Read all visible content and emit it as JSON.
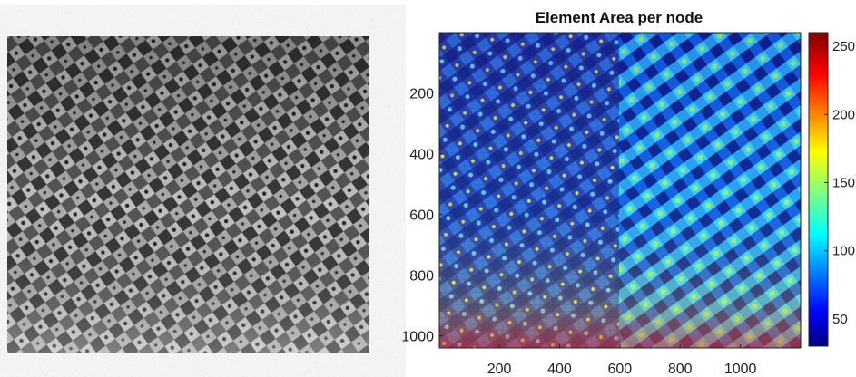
{
  "chart_data": [
    {
      "type": "image",
      "title": "",
      "description_kind": "grayscale photograph of a woven fabric surface"
    },
    {
      "type": "heatmap",
      "title": "Element Area per node",
      "xlabel": "",
      "ylabel": "",
      "x_ticks": [
        200,
        400,
        600,
        800,
        1000
      ],
      "y_ticks": [
        200,
        400,
        600,
        800,
        1000
      ],
      "xlim": [
        1,
        1200
      ],
      "ylim": [
        1,
        1040
      ],
      "y_reversed": true,
      "colorbar": {
        "ticks": [
          50,
          100,
          150,
          200,
          250
        ],
        "tick_labels": [
          "50",
          "100",
          "150",
          "200",
          "250"
        ],
        "range": [
          30,
          260
        ],
        "colormap": "jet"
      },
      "grid": false,
      "left_half_overlay_mesh": true
    }
  ],
  "colors": {
    "axis": "#222222",
    "background": "#ffffff",
    "mesh": "#333333"
  }
}
